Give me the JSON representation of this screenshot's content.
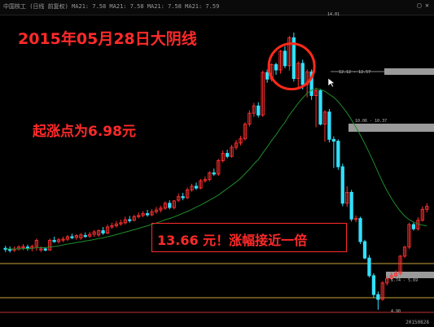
{
  "header": {
    "strip_text": "中国核工 (日线 前复权)  MA21: 7.58  MA21: 7.58  MA21: 7.58  MA21: 7.59",
    "corner_icons": "▢ ✕"
  },
  "annotations": {
    "title": "2015年05月28日大阴线",
    "start_note": "起涨点为6.98元",
    "result_note": "13.66 元！涨幅接近一倍"
  },
  "price_labels": {
    "peak": "14.01",
    "level_1": "12.12 - 12.57",
    "level_2": "10.06 - 10.37",
    "level_3": "5.74 - 5.69",
    "low": "4.90"
  },
  "footer": {
    "date": "20150828"
  },
  "colors": {
    "up_candle": "#ff3030",
    "down_candle": "#33e0ff",
    "ma_line": "#1f8c2a",
    "annotation_text": "#ff2a2a",
    "highlight_circle": "#ff2a1a",
    "bottom_lines": "#c9a43a"
  },
  "chart_data": {
    "type": "candlestick",
    "title": "2015年05月28日大阴线",
    "x": [
      1,
      2,
      3,
      4,
      5,
      6,
      7,
      8,
      9,
      10,
      11,
      12,
      13,
      14,
      15,
      16,
      17,
      18,
      19,
      20,
      21,
      22,
      23,
      24,
      25,
      26,
      27,
      28,
      29,
      30,
      31,
      32,
      33,
      34,
      35,
      36,
      37,
      38,
      39,
      40,
      41,
      42,
      43,
      44,
      45,
      46,
      47,
      48,
      49,
      50,
      51,
      52,
      53,
      54,
      55,
      56,
      57,
      58,
      59,
      60,
      61,
      62,
      63,
      64,
      65,
      66,
      67,
      68,
      69,
      70,
      71,
      72,
      73,
      74,
      75,
      76,
      77,
      78,
      79,
      80,
      81,
      82,
      83,
      84,
      85,
      86,
      87,
      88,
      89,
      90,
      91,
      92,
      93,
      94,
      95,
      96
    ],
    "series": [
      {
        "type": "candlestick",
        "open": [
          6.92,
          6.88,
          6.86,
          6.9,
          6.94,
          6.96,
          6.92,
          6.98,
          6.88,
          6.9,
          6.86,
          7.18,
          7.14,
          7.2,
          7.22,
          7.3,
          7.28,
          7.26,
          7.34,
          7.32,
          7.38,
          7.36,
          7.5,
          7.42,
          7.62,
          7.66,
          7.72,
          7.76,
          7.86,
          7.84,
          7.96,
          8.0,
          8.06,
          8.02,
          8.12,
          8.18,
          8.24,
          8.4,
          8.26,
          8.5,
          8.62,
          8.58,
          8.84,
          8.96,
          8.9,
          9.14,
          9.18,
          9.4,
          9.36,
          9.8,
          10.04,
          9.94,
          10.24,
          10.38,
          10.52,
          11.0,
          11.36,
          11.6,
          11.3,
          12.7,
          12.48,
          12.96,
          12.78,
          13.4,
          12.92,
          13.84,
          12.5,
          13.0,
          12.3,
          12.72,
          11.94,
          12.1,
          11.0,
          11.4,
          10.5,
          10.44,
          9.6,
          8.4,
          8.76,
          7.88,
          7.9,
          7.14,
          6.6,
          6.02,
          5.4,
          5.24,
          5.78,
          5.92,
          6.02,
          6.1,
          6.66,
          6.96,
          7.7,
          7.56,
          7.84,
          8.2
        ],
        "high": [
          7.0,
          6.98,
          6.98,
          7.02,
          7.06,
          7.04,
          7.04,
          7.24,
          6.98,
          6.96,
          7.24,
          7.3,
          7.26,
          7.3,
          7.36,
          7.4,
          7.38,
          7.42,
          7.44,
          7.46,
          7.52,
          7.54,
          7.62,
          7.7,
          7.76,
          7.82,
          7.86,
          7.96,
          7.98,
          8.02,
          8.1,
          8.14,
          8.18,
          8.2,
          8.28,
          8.32,
          8.46,
          8.5,
          8.5,
          8.72,
          8.74,
          8.92,
          9.04,
          9.08,
          9.2,
          9.28,
          9.46,
          9.54,
          9.86,
          10.14,
          10.16,
          10.32,
          10.48,
          10.62,
          11.06,
          11.46,
          11.7,
          11.72,
          12.76,
          12.8,
          13.0,
          13.02,
          13.44,
          13.56,
          13.9,
          14.01,
          13.06,
          13.12,
          12.8,
          12.8,
          12.2,
          12.16,
          11.46,
          11.5,
          10.6,
          10.5,
          9.7,
          8.96,
          8.84,
          8.0,
          7.96,
          7.2,
          6.7,
          6.1,
          5.5,
          5.84,
          6.0,
          6.12,
          6.2,
          6.7,
          7.0,
          7.76,
          7.76,
          7.94,
          8.3,
          8.4
        ],
        "low": [
          6.8,
          6.78,
          6.8,
          6.84,
          6.86,
          6.84,
          6.82,
          6.84,
          6.8,
          6.82,
          6.84,
          7.1,
          7.08,
          7.12,
          7.16,
          7.22,
          7.2,
          7.2,
          7.26,
          7.26,
          7.3,
          7.3,
          7.36,
          7.38,
          7.56,
          7.6,
          7.66,
          7.7,
          7.76,
          7.8,
          7.9,
          7.94,
          7.96,
          7.98,
          8.06,
          8.1,
          8.18,
          8.2,
          8.2,
          8.44,
          8.5,
          8.54,
          8.78,
          8.84,
          8.86,
          9.08,
          9.12,
          9.3,
          9.3,
          9.74,
          9.88,
          9.9,
          10.16,
          10.3,
          10.46,
          10.92,
          11.24,
          11.22,
          11.24,
          12.36,
          12.4,
          12.62,
          12.66,
          12.84,
          12.76,
          12.4,
          12.2,
          12.14,
          11.88,
          11.8,
          10.9,
          10.96,
          10.42,
          10.4,
          9.56,
          9.5,
          8.3,
          8.28,
          7.8,
          7.78,
          7.06,
          6.56,
          5.96,
          5.3,
          4.9,
          5.2,
          5.7,
          5.86,
          5.96,
          6.04,
          6.6,
          6.9,
          7.5,
          7.5,
          7.8,
          8.1
        ],
        "close": [
          6.88,
          6.86,
          6.9,
          6.96,
          6.98,
          6.92,
          6.98,
          7.18,
          6.9,
          6.86,
          7.18,
          7.14,
          7.2,
          7.22,
          7.3,
          7.28,
          7.34,
          7.36,
          7.32,
          7.38,
          7.46,
          7.5,
          7.42,
          7.62,
          7.66,
          7.72,
          7.76,
          7.86,
          7.84,
          7.96,
          8.0,
          8.06,
          8.02,
          8.12,
          8.18,
          8.24,
          8.4,
          8.26,
          8.48,
          8.62,
          8.58,
          8.84,
          8.96,
          8.9,
          9.14,
          9.18,
          9.4,
          9.36,
          9.8,
          10.04,
          9.94,
          10.24,
          10.38,
          10.52,
          11.0,
          11.36,
          11.6,
          11.3,
          12.7,
          12.48,
          12.96,
          12.78,
          13.4,
          12.92,
          13.84,
          12.5,
          13.0,
          12.3,
          12.72,
          11.94,
          12.1,
          11.0,
          11.4,
          10.5,
          10.44,
          9.6,
          8.4,
          8.76,
          7.88,
          7.9,
          7.14,
          6.6,
          6.02,
          5.4,
          5.24,
          5.78,
          5.92,
          6.02,
          6.1,
          6.66,
          6.96,
          7.7,
          7.56,
          7.84,
          8.2,
          8.3
        ]
      },
      {
        "type": "line",
        "values": [
          6.9,
          6.9,
          6.9,
          6.9,
          6.91,
          6.91,
          6.92,
          6.94,
          6.94,
          6.94,
          6.96,
          6.98,
          7.0,
          7.03,
          7.06,
          7.08,
          7.11,
          7.13,
          7.16,
          7.18,
          7.21,
          7.24,
          7.26,
          7.3,
          7.33,
          7.37,
          7.41,
          7.45,
          7.49,
          7.53,
          7.57,
          7.62,
          7.66,
          7.71,
          7.75,
          7.8,
          7.86,
          7.9,
          7.95,
          8.01,
          8.07,
          8.13,
          8.2,
          8.27,
          8.34,
          8.42,
          8.5,
          8.58,
          8.67,
          8.78,
          8.88,
          8.99,
          9.1,
          9.22,
          9.37,
          9.52,
          9.69,
          9.84,
          10.05,
          10.25,
          10.46,
          10.65,
          10.87,
          11.06,
          11.3,
          11.49,
          11.69,
          11.86,
          12.02,
          12.12,
          12.16,
          12.14,
          12.08,
          11.98,
          11.88,
          11.74,
          11.56,
          11.37,
          11.14,
          10.9,
          10.64,
          10.36,
          10.06,
          9.75,
          9.42,
          9.1,
          8.82,
          8.56,
          8.34,
          8.14,
          7.98,
          7.86,
          7.78,
          7.72,
          7.68,
          7.66
        ]
      }
    ],
    "ylim": [
      4.6,
      14.6
    ],
    "grid": false,
    "legend": "none"
  }
}
